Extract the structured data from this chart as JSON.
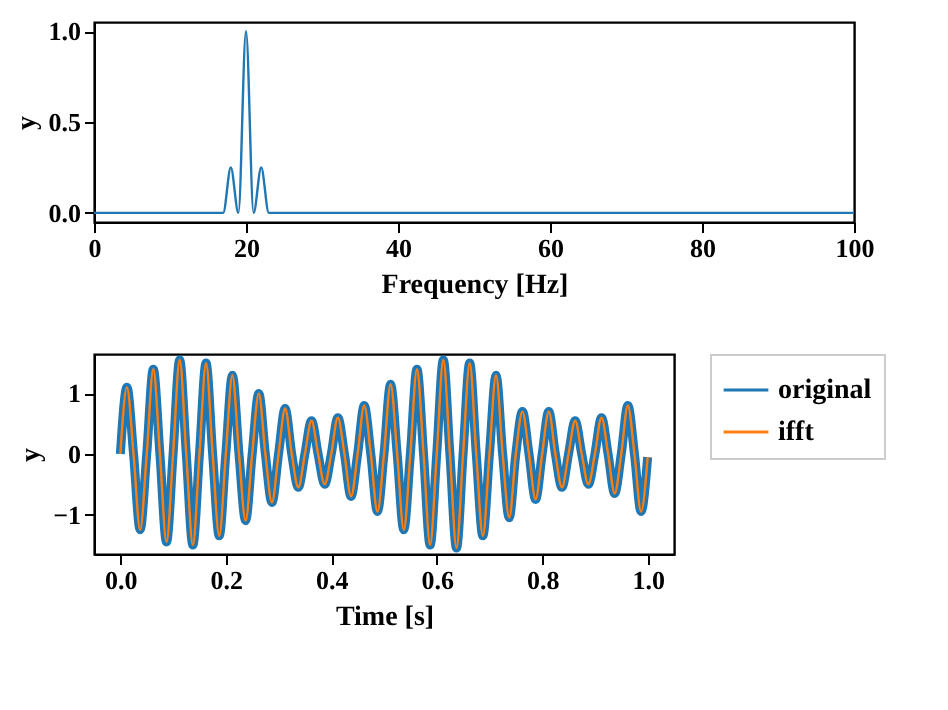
{
  "chart_data": [
    {
      "type": "line",
      "xlabel": "Frequency [Hz]",
      "ylabel": "y",
      "x": [
        0,
        17,
        18,
        19,
        20,
        21,
        22,
        23,
        100
      ],
      "series": [
        {
          "color": "#1f77b4",
          "values": [
            0,
            0,
            0.25,
            0,
            1.0,
            0,
            0.25,
            0,
            0
          ]
        }
      ],
      "xlim": [
        0,
        100
      ],
      "xticks": [
        0,
        20,
        40,
        60,
        80,
        100
      ],
      "ylim": [
        -0.05,
        1.05
      ],
      "yticks": [
        {
          "value": 0,
          "label": "0.0"
        },
        {
          "value": 0.5,
          "label": "0.5"
        },
        {
          "value": 1,
          "label": "1.0"
        }
      ],
      "grid": false,
      "legend": false
    },
    {
      "type": "line",
      "xlabel": "Time [s]",
      "ylabel": "y",
      "x": [
        0,
        0.0125,
        0.025,
        0.0375,
        0.05,
        0.0625,
        0.075,
        0.0875,
        0.1,
        0.1125,
        0.125,
        0.1375,
        0.15,
        0.1625,
        0.175,
        0.1875,
        0.2,
        0.2125,
        0.225,
        0.2375,
        0.25,
        0.2625,
        0.275,
        0.2875,
        0.3,
        0.3125,
        0.325,
        0.3375,
        0.35,
        0.3625,
        0.375,
        0.3875,
        0.4,
        0.4125,
        0.425,
        0.4375,
        0.45,
        0.4625,
        0.475,
        0.4875,
        0.5,
        0.5125,
        0.525,
        0.5375,
        0.55,
        0.5625,
        0.575,
        0.5875,
        0.6,
        0.6125,
        0.625,
        0.6375,
        0.65,
        0.6625,
        0.675,
        0.6875,
        0.7,
        0.7125,
        0.725,
        0.7375,
        0.75,
        0.7625,
        0.775,
        0.7875,
        0.8,
        0.8125,
        0.825,
        0.8375,
        0.85,
        0.8625,
        0.875,
        0.8875,
        0.9,
        0.9125,
        0.925,
        0.9375,
        0.95,
        0.9625,
        0.975,
        0.9875,
        1.0
      ],
      "series": [
        {
          "name": "original",
          "color": "#1f77b4",
          "values": [
            0,
            1.1,
            0,
            -1.25,
            0,
            1.4,
            0,
            -1.45,
            0,
            1.55,
            0,
            -1.5,
            0,
            1.5,
            0,
            -1.35,
            0,
            1.3,
            0,
            -1.1,
            0,
            1.0,
            0,
            -0.8,
            0,
            0.75,
            0,
            -0.55,
            0,
            0.55,
            0,
            -0.5,
            0,
            0.6,
            0,
            -0.7,
            0,
            0.8,
            0,
            -0.95,
            0,
            1.15,
            0,
            -1.25,
            0,
            1.4,
            0,
            -1.5,
            0,
            1.55,
            0,
            -1.55,
            0,
            1.5,
            0,
            -1.35,
            0,
            1.3,
            0,
            -1.05,
            0,
            0.7,
            0,
            -0.75,
            0,
            0.7,
            0,
            -0.55,
            0,
            0.55,
            0,
            -0.5,
            0,
            0.6,
            0,
            -0.65,
            0,
            0.8,
            0,
            -0.95,
            -0.05
          ]
        },
        {
          "name": "ifft",
          "color": "#ff7f0e",
          "values": [
            0,
            1.1,
            0,
            -1.25,
            0,
            1.4,
            0,
            -1.45,
            0,
            1.55,
            0,
            -1.5,
            0,
            1.5,
            0,
            -1.35,
            0,
            1.3,
            0,
            -1.1,
            0,
            1.0,
            0,
            -0.8,
            0,
            0.75,
            0,
            -0.55,
            0,
            0.55,
            0,
            -0.5,
            0,
            0.6,
            0,
            -0.7,
            0,
            0.8,
            0,
            -0.95,
            0,
            1.15,
            0,
            -1.25,
            0,
            1.4,
            0,
            -1.5,
            0,
            1.55,
            0,
            -1.55,
            0,
            1.5,
            0,
            -1.35,
            0,
            1.3,
            0,
            -1.05,
            0,
            0.7,
            0,
            -0.75,
            0,
            0.7,
            0,
            -0.55,
            0,
            0.55,
            0,
            -0.5,
            0,
            0.6,
            0,
            -0.65,
            0,
            0.8,
            0,
            -0.95,
            -0.05
          ]
        }
      ],
      "xlim": [
        -0.05,
        1.05
      ],
      "xticks": [
        {
          "value": 0,
          "label": "0.0"
        },
        {
          "value": 0.2,
          "label": "0.2"
        },
        {
          "value": 0.4,
          "label": "0.4"
        },
        {
          "value": 0.6,
          "label": "0.6"
        },
        {
          "value": 0.8,
          "label": "0.8"
        },
        {
          "value": 1,
          "label": "1.0"
        }
      ],
      "ylim": [
        -1.65,
        1.65
      ],
      "yticks": [
        -1,
        0,
        1
      ],
      "grid": false,
      "legend": "right"
    }
  ]
}
